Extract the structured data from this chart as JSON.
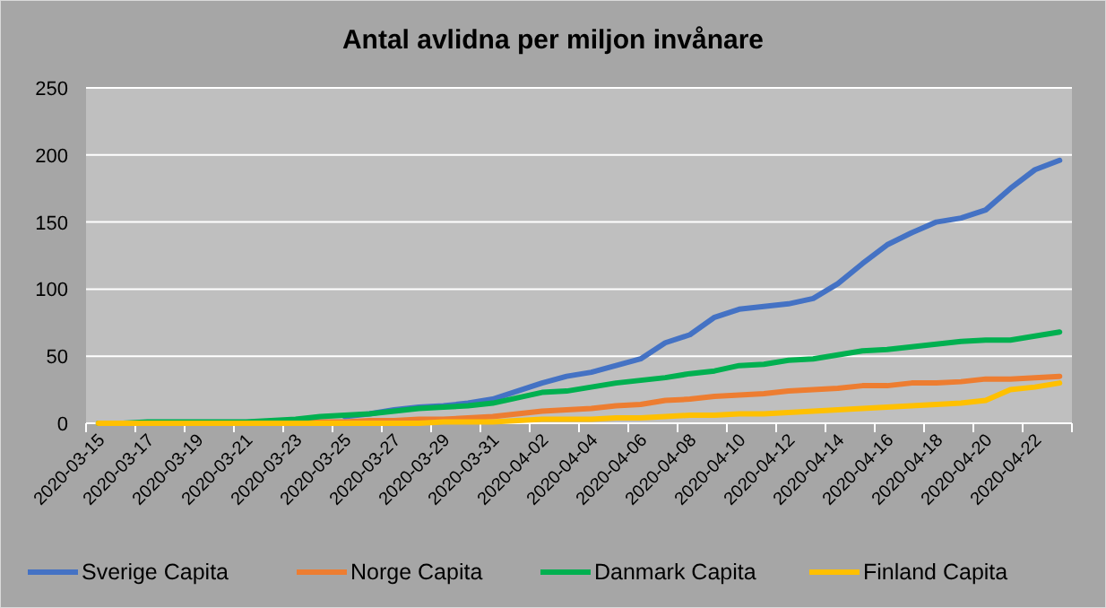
{
  "chart_data": {
    "type": "line",
    "title": "Antal avlidna per miljon invånare",
    "categories": [
      "2020-03-15",
      null,
      "2020-03-17",
      null,
      "2020-03-19",
      null,
      "2020-03-21",
      null,
      "2020-03-23",
      null,
      "2020-03-25",
      null,
      "2020-03-27",
      null,
      "2020-03-29",
      null,
      "2020-03-31",
      null,
      "2020-04-02",
      null,
      "2020-04-04",
      null,
      "2020-04-06",
      null,
      "2020-04-08",
      null,
      "2020-04-10",
      null,
      "2020-04-12",
      null,
      "2020-04-14",
      null,
      "2020-04-16",
      null,
      "2020-04-18",
      null,
      "2020-04-20",
      null,
      "2020-04-22",
      null
    ],
    "series": [
      {
        "name": "Sverige Capita",
        "color": "#4472c4",
        "values": [
          null,
          null,
          null,
          null,
          null,
          null,
          null,
          null,
          null,
          null,
          5,
          7,
          10,
          12,
          13,
          15,
          18,
          24,
          30,
          35,
          38,
          43,
          48,
          60,
          66,
          79,
          85,
          87,
          89,
          93,
          104,
          119,
          133,
          142,
          150,
          153,
          159,
          175,
          189,
          196
        ]
      },
      {
        "name": "Norge Capita",
        "color": "#ed7d31",
        "values": [
          null,
          null,
          null,
          null,
          null,
          null,
          null,
          null,
          1,
          1,
          1,
          2,
          2,
          3,
          3,
          4,
          5,
          7,
          9,
          10,
          11,
          13,
          14,
          17,
          18,
          20,
          21,
          22,
          24,
          25,
          26,
          28,
          28,
          30,
          30,
          31,
          33,
          33,
          34,
          35
        ]
      },
      {
        "name": "Danmark Capita",
        "color": "#00b050",
        "values": [
          0,
          0,
          1,
          1,
          1,
          1,
          1,
          2,
          3,
          5,
          6,
          7,
          9,
          11,
          12,
          13,
          15,
          19,
          23,
          24,
          27,
          30,
          32,
          34,
          37,
          39,
          43,
          44,
          47,
          48,
          51,
          54,
          55,
          57,
          59,
          61,
          62,
          62,
          65,
          68
        ]
      },
      {
        "name": "Finland Capita",
        "color": "#ffc000",
        "values": [
          0,
          0,
          0,
          0,
          0,
          0,
          0,
          0,
          0,
          0,
          0,
          0,
          0,
          0,
          1,
          1,
          1,
          2,
          3,
          3,
          3,
          4,
          4,
          5,
          6,
          6,
          7,
          7,
          8,
          9,
          10,
          11,
          12,
          13,
          14,
          15,
          17,
          25,
          27,
          30
        ]
      }
    ],
    "ylim": [
      0,
      250
    ],
    "yticks": [
      0,
      50,
      100,
      150,
      200,
      250
    ],
    "grid": "y",
    "legend": "bottom",
    "marker": "none",
    "line_style": "solid"
  }
}
